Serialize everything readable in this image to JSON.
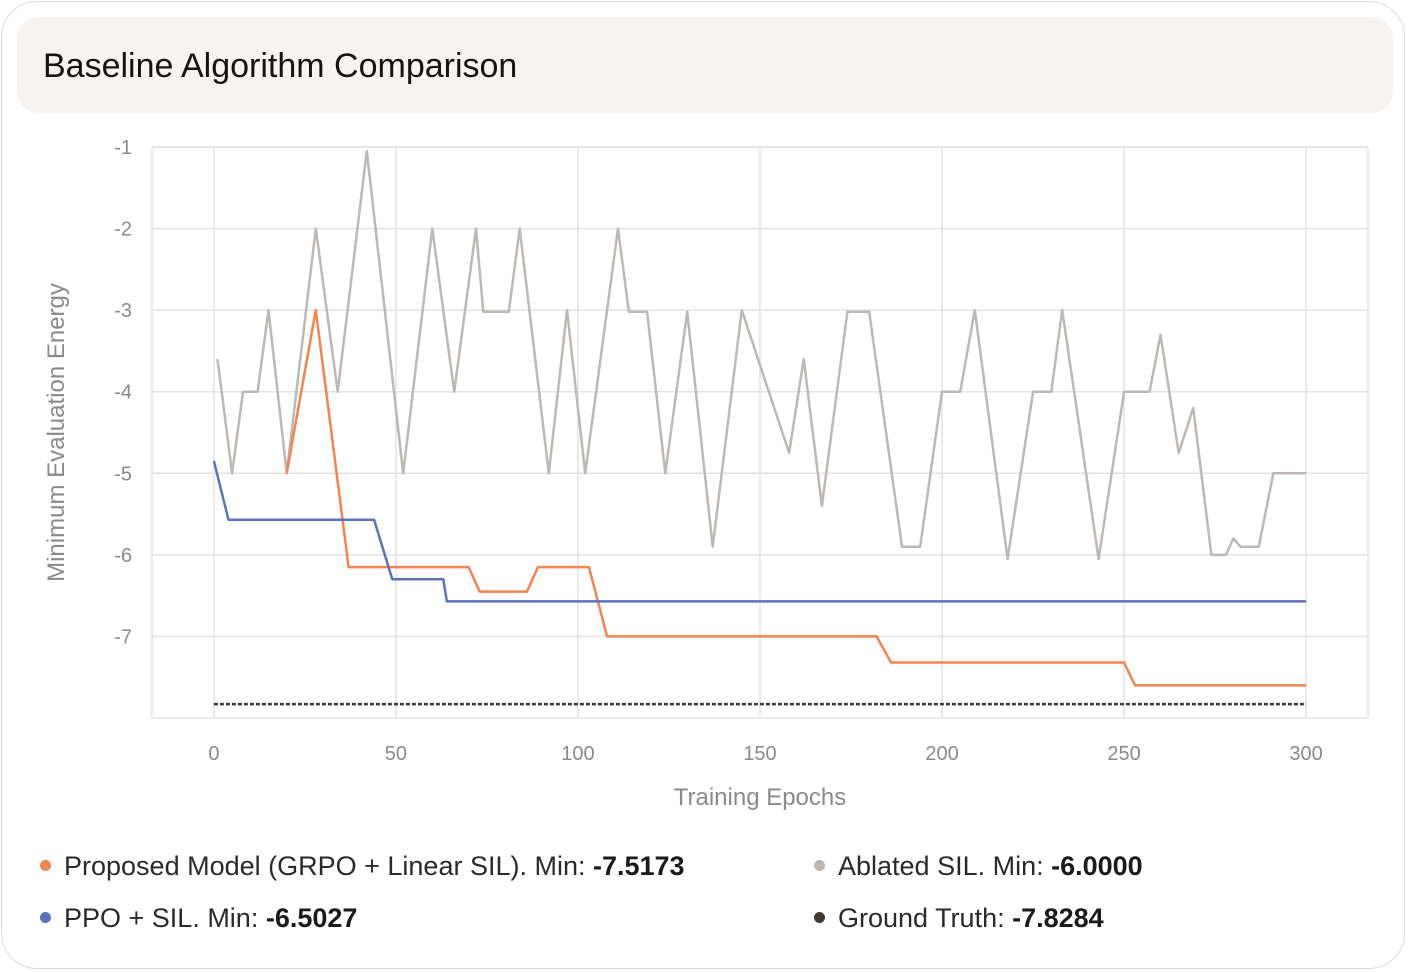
{
  "title": "Baseline Algorithm Comparison",
  "colors": {
    "proposed": "#f3834f",
    "ppo": "#5b72bd",
    "ablated": "#bdb8b4",
    "ground_truth": "#3f3a36",
    "grid": "#e2e2e2",
    "axis_text": "#8a8a8a"
  },
  "legend": [
    {
      "label": "Proposed Model (GRPO + Linear SIL). Min: ",
      "value": "-7.5173"
    },
    {
      "label": "Ablated SIL. Min: ",
      "value": "-6.0000"
    },
    {
      "label": "PPO + SIL. Min: ",
      "value": "-6.5027"
    },
    {
      "label": "Ground Truth: ",
      "value": "-7.8284"
    }
  ],
  "chart_data": {
    "type": "line",
    "title": "Baseline Algorithm Comparison",
    "xlabel": "Training Epochs",
    "ylabel": "Minimum Evaluation Energy",
    "xlim": [
      -17,
      317
    ],
    "ylim": [
      -8,
      -1
    ],
    "xticks": [
      0,
      50,
      100,
      150,
      200,
      250,
      300
    ],
    "yticks": [
      -7,
      -6,
      -5,
      -4,
      -3,
      -2,
      -1
    ],
    "grid": true,
    "legend_position": "bottom",
    "series": [
      {
        "name": "Proposed Model (GRPO + Linear SIL). Min: -7.5173",
        "style": "solid",
        "points": [
          [
            20,
            -5.0
          ],
          [
            28,
            -3.0
          ],
          [
            37,
            -6.15
          ],
          [
            70,
            -6.15
          ],
          [
            73,
            -6.45
          ],
          [
            86,
            -6.45
          ],
          [
            89,
            -6.15
          ],
          [
            103,
            -6.15
          ],
          [
            108,
            -7.0
          ],
          [
            182,
            -7.0
          ],
          [
            186,
            -7.32
          ],
          [
            250,
            -7.32
          ],
          [
            253,
            -7.6
          ],
          [
            300,
            -7.6
          ]
        ]
      },
      {
        "name": "PPO + SIL. Min: -6.5027",
        "style": "solid",
        "points": [
          [
            0,
            -4.85
          ],
          [
            4,
            -5.57
          ],
          [
            44,
            -5.57
          ],
          [
            49,
            -6.3
          ],
          [
            63,
            -6.3
          ],
          [
            64,
            -6.57
          ],
          [
            300,
            -6.57
          ]
        ]
      },
      {
        "name": "Ablated SIL. Min: -6.0000",
        "style": "solid",
        "points": [
          [
            1,
            -3.6
          ],
          [
            5,
            -5.0
          ],
          [
            8,
            -4.0
          ],
          [
            12,
            -4.0
          ],
          [
            15,
            -3.0
          ],
          [
            20,
            -5.0
          ],
          [
            28,
            -2.0
          ],
          [
            34,
            -4.0
          ],
          [
            42,
            -1.05
          ],
          [
            52,
            -5.0
          ],
          [
            60,
            -2.0
          ],
          [
            66,
            -4.0
          ],
          [
            72,
            -2.0
          ],
          [
            74,
            -3.02
          ],
          [
            81,
            -3.02
          ],
          [
            84,
            -2.0
          ],
          [
            92,
            -5.0
          ],
          [
            97,
            -3.0
          ],
          [
            102,
            -5.0
          ],
          [
            111,
            -2.0
          ],
          [
            114,
            -3.02
          ],
          [
            119,
            -3.02
          ],
          [
            124,
            -5.0
          ],
          [
            130,
            -3.02
          ],
          [
            137,
            -5.9
          ],
          [
            145,
            -3.0
          ],
          [
            158,
            -4.75
          ],
          [
            162,
            -3.6
          ],
          [
            167,
            -5.4
          ],
          [
            174,
            -3.02
          ],
          [
            180,
            -3.02
          ],
          [
            189,
            -5.9
          ],
          [
            194,
            -5.9
          ],
          [
            200,
            -4.0
          ],
          [
            205,
            -4.0
          ],
          [
            209,
            -3.0
          ],
          [
            218,
            -6.05
          ],
          [
            225,
            -4.0
          ],
          [
            230,
            -4.0
          ],
          [
            233,
            -3.0
          ],
          [
            243,
            -6.05
          ],
          [
            250,
            -4.0
          ],
          [
            257,
            -4.0
          ],
          [
            260,
            -3.3
          ],
          [
            265,
            -4.75
          ],
          [
            269,
            -4.2
          ],
          [
            274,
            -6.0
          ],
          [
            278,
            -6.0
          ],
          [
            280,
            -5.8
          ],
          [
            282,
            -5.9
          ],
          [
            287,
            -5.9
          ],
          [
            291,
            -5.0
          ],
          [
            300,
            -5.0
          ]
        ]
      },
      {
        "name": "Ground Truth: -7.8284",
        "style": "dashed",
        "points": [
          [
            0,
            -7.83
          ],
          [
            300,
            -7.83
          ]
        ]
      }
    ]
  }
}
